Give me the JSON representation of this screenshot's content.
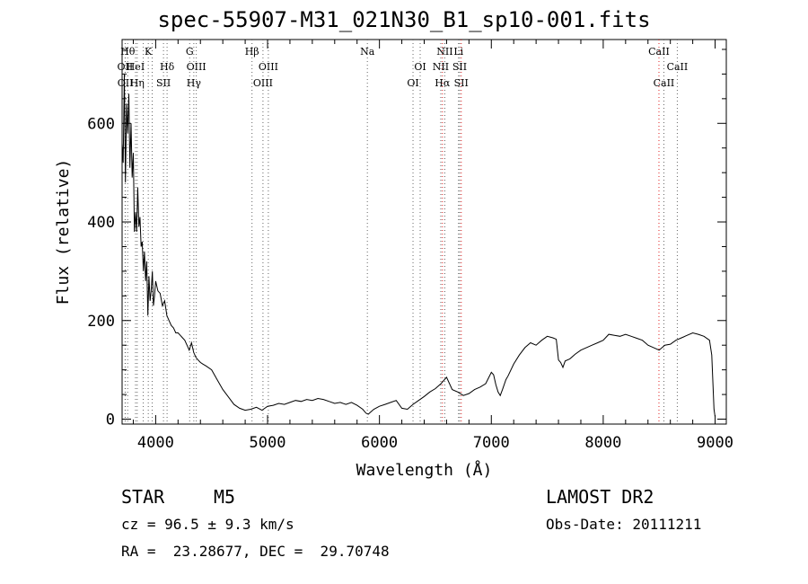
{
  "title": "spec-55907-M31_021N30_B1_sp10-001.fits",
  "footer": {
    "object_class": "STAR",
    "object_subclass": "M5",
    "survey": "LAMOST DR2",
    "cz": "cz = 96.5 ± 9.3 km/s",
    "obs_date": "Obs-Date: 20111211",
    "coords": "RA =  23.28677, DEC =  29.70748"
  },
  "chart_data": {
    "type": "line",
    "title": "spec-55907-M31_021N30_B1_sp10-001.fits",
    "xlabel": "Wavelength (Å)",
    "ylabel": "Flux (relative)",
    "xlim": [
      3700,
      9100
    ],
    "ylim": [
      -10,
      770
    ],
    "xticks": [
      4000,
      5000,
      6000,
      7000,
      8000,
      9000
    ],
    "yticks": [
      0,
      200,
      400,
      600
    ],
    "grid": false,
    "series": [
      {
        "x": [
          3700,
          3710,
          3720,
          3730,
          3740,
          3750,
          3760,
          3770,
          3780,
          3790,
          3800,
          3810,
          3820,
          3830,
          3840,
          3850,
          3860,
          3870,
          3880,
          3890,
          3900,
          3910,
          3920,
          3930,
          3940,
          3950,
          3960,
          3970,
          3980,
          3990,
          4000,
          4020,
          4040,
          4060,
          4080,
          4100,
          4120,
          4140,
          4160,
          4180,
          4200,
          4220,
          4240,
          4260,
          4280,
          4300,
          4320,
          4340,
          4360,
          4380,
          4400,
          4420,
          4450,
          4500,
          4550,
          4600,
          4650,
          4700,
          4750,
          4800,
          4850,
          4900,
          4950,
          5000,
          5050,
          5100,
          5150,
          5200,
          5250,
          5300,
          5350,
          5400,
          5450,
          5500,
          5550,
          5600,
          5650,
          5700,
          5750,
          5800,
          5850,
          5880,
          5900,
          5920,
          5950,
          6000,
          6050,
          6100,
          6150,
          6200,
          6250,
          6300,
          6350,
          6400,
          6450,
          6500,
          6550,
          6600,
          6650,
          6700,
          6750,
          6800,
          6850,
          6900,
          6950,
          7000,
          7020,
          7040,
          7060,
          7080,
          7100,
          7130,
          7150,
          7200,
          7250,
          7300,
          7350,
          7400,
          7450,
          7500,
          7550,
          7580,
          7600,
          7620,
          7640,
          7660,
          7700,
          7750,
          7800,
          7850,
          7900,
          7950,
          8000,
          8050,
          8100,
          8150,
          8200,
          8250,
          8300,
          8350,
          8400,
          8450,
          8500,
          8550,
          8600,
          8650,
          8700,
          8750,
          8800,
          8850,
          8900,
          8950,
          8970,
          8990,
          9000
        ],
        "y": [
          560,
          520,
          700,
          480,
          640,
          580,
          660,
          510,
          600,
          490,
          540,
          380,
          420,
          380,
          470,
          390,
          410,
          350,
          360,
          300,
          340,
          280,
          320,
          210,
          290,
          240,
          260,
          300,
          230,
          250,
          280,
          260,
          255,
          230,
          240,
          210,
          200,
          190,
          185,
          175,
          175,
          170,
          165,
          160,
          150,
          140,
          155,
          135,
          125,
          120,
          115,
          112,
          108,
          100,
          80,
          60,
          45,
          30,
          22,
          18,
          20,
          24,
          18,
          26,
          28,
          32,
          30,
          34,
          38,
          36,
          40,
          38,
          42,
          40,
          36,
          32,
          34,
          30,
          34,
          28,
          20,
          12,
          10,
          14,
          20,
          26,
          30,
          34,
          38,
          22,
          20,
          30,
          38,
          46,
          55,
          62,
          72,
          85,
          60,
          55,
          48,
          52,
          60,
          65,
          72,
          95,
          90,
          70,
          55,
          48,
          60,
          80,
          88,
          112,
          130,
          145,
          155,
          150,
          160,
          168,
          165,
          162,
          120,
          115,
          105,
          118,
          122,
          132,
          140,
          145,
          150,
          155,
          160,
          172,
          170,
          168,
          172,
          168,
          164,
          160,
          150,
          145,
          140,
          150,
          152,
          160,
          165,
          170,
          175,
          172,
          168,
          160,
          130,
          20,
          5
        ]
      }
    ],
    "lines": [
      {
        "wl": 3727,
        "label": "OII",
        "row": 1,
        "color": "#666666"
      },
      {
        "wl": 3729,
        "label": "OII",
        "row": 2,
        "color": "#666666"
      },
      {
        "wl": 3750,
        "label": "Hθ",
        "row": 0,
        "color": "#666666"
      },
      {
        "wl": 3820,
        "label": "HeI",
        "row": 1,
        "color": "#666666"
      },
      {
        "wl": 3835,
        "label": "Hη",
        "row": 2,
        "color": "#666666"
      },
      {
        "wl": 3889,
        "label": "HeI",
        "row": null,
        "color": "#666666"
      },
      {
        "wl": 3934,
        "label": "K",
        "row": 0,
        "color": "#666666"
      },
      {
        "wl": 3969,
        "label": "H",
        "row": null,
        "color": "#666666"
      },
      {
        "wl": 4070,
        "label": "SII",
        "row": 2,
        "color": "#666666"
      },
      {
        "wl": 4102,
        "label": "Hδ",
        "row": 1,
        "color": "#666666"
      },
      {
        "wl": 4304,
        "label": "G",
        "row": 0,
        "color": "#666666"
      },
      {
        "wl": 4341,
        "label": "Hγ",
        "row": 2,
        "color": "#666666"
      },
      {
        "wl": 4363,
        "label": "OIII",
        "row": 1,
        "color": "#666666"
      },
      {
        "wl": 4861,
        "label": "Hβ",
        "row": 0,
        "color": "#666666"
      },
      {
        "wl": 4959,
        "label": "OIII",
        "row": 2,
        "color": "#666666"
      },
      {
        "wl": 5007,
        "label": "OIII",
        "row": 1,
        "color": "#666666"
      },
      {
        "wl": 5892,
        "label": "Na",
        "row": 0,
        "color": "#666666"
      },
      {
        "wl": 6300,
        "label": "OI",
        "row": 2,
        "color": "#666666"
      },
      {
        "wl": 6364,
        "label": "OI",
        "row": 1,
        "color": "#666666"
      },
      {
        "wl": 6548,
        "label": "NII",
        "row": 1,
        "color": "#666666"
      },
      {
        "wl": 6563,
        "label": "Hα",
        "row": 2,
        "color": "#e02020"
      },
      {
        "wl": 6584,
        "label": "NII",
        "row": 0,
        "color": "#666666"
      },
      {
        "wl": 6707,
        "label": "Li",
        "row": 0,
        "color": "#666666"
      },
      {
        "wl": 6717,
        "label": "SII",
        "row": 1,
        "color": "#666666"
      },
      {
        "wl": 6731,
        "label": "SII",
        "row": 2,
        "color": "#e02020"
      },
      {
        "wl": 8498,
        "label": "CaII",
        "row": 0,
        "color": "#e02020"
      },
      {
        "wl": 8542,
        "label": "CaII",
        "row": 2,
        "color": "#666666"
      },
      {
        "wl": 8662,
        "label": "CaII",
        "row": 1,
        "color": "#666666"
      }
    ]
  }
}
